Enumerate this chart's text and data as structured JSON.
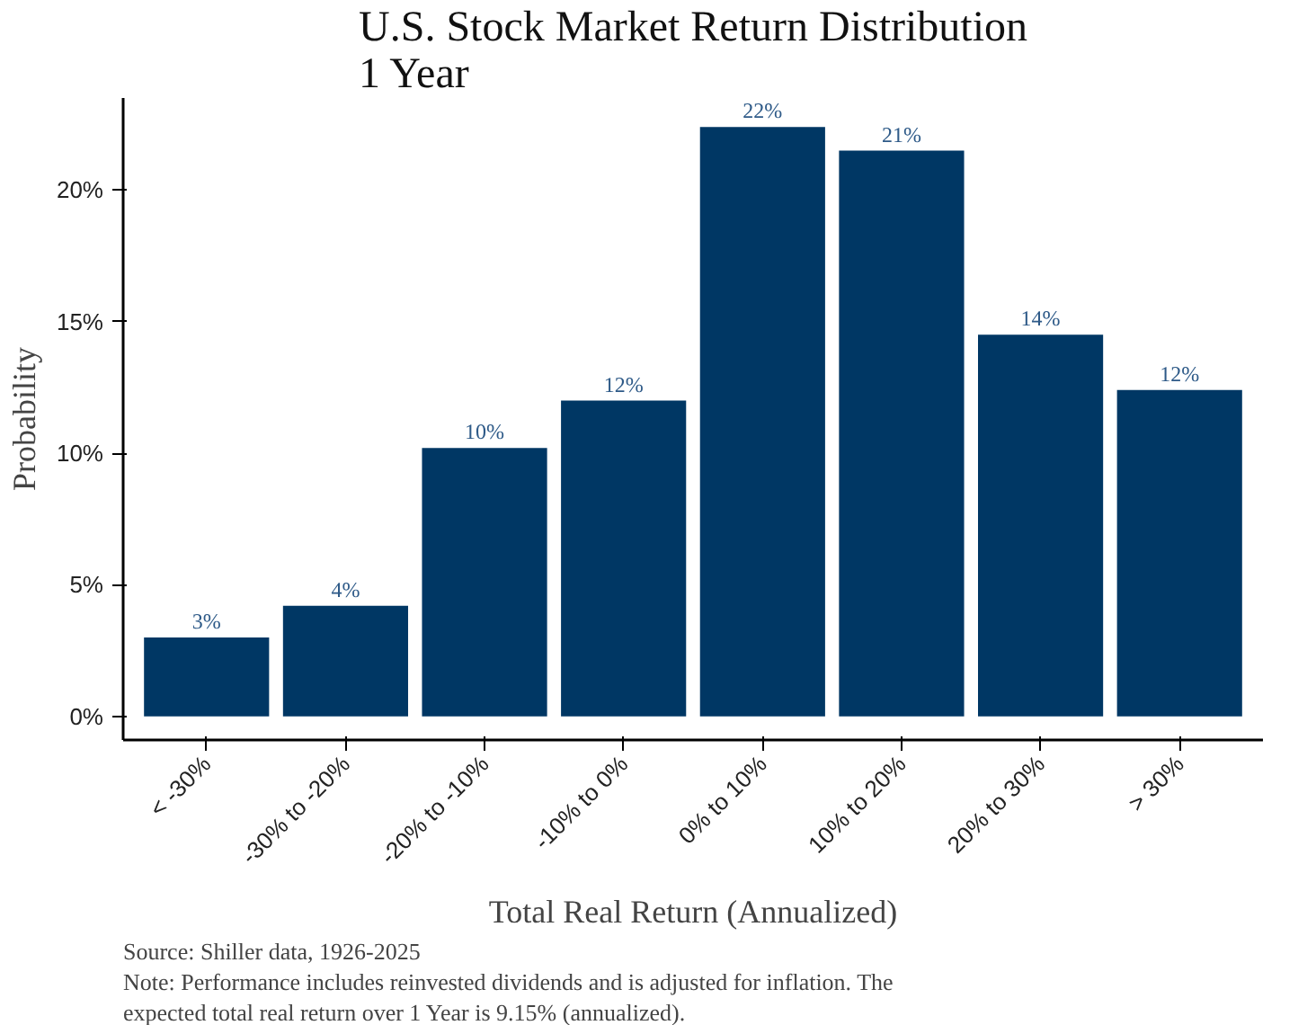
{
  "chart_data": {
    "type": "bar",
    "title": "U.S. Stock Market Return Distribution\n1 Year",
    "xlabel": "Total Real Return (Annualized)",
    "ylabel": "Probability",
    "categories": [
      "< -30%",
      "-30% to -20%",
      "-20% to -10%",
      "-10% to 0%",
      "0% to 10%",
      "10% to 20%",
      "20% to 30%",
      "> 30%"
    ],
    "values": [
      3.0,
      4.2,
      10.2,
      12.0,
      22.4,
      21.5,
      14.5,
      12.4
    ],
    "value_labels": [
      "3%",
      "4%",
      "10%",
      "12%",
      "22%",
      "21%",
      "14%",
      "12%"
    ],
    "color": "#003764",
    "ylim": [
      -0.9,
      23.5
    ],
    "yticks": [
      {
        "value": 0,
        "label": "0%"
      },
      {
        "value": 5,
        "label": "5%"
      },
      {
        "value": 10,
        "label": "10%"
      },
      {
        "value": 15,
        "label": "15%"
      },
      {
        "value": 20,
        "label": "20%"
      }
    ],
    "grid": false,
    "annotations": [
      "Source: Shiller data, 1926-2025",
      "Note: Performance includes reinvested dividends and is adjusted for inflation. The\nexpected total real return over 1 Year is 9.15% (annualized)."
    ]
  }
}
